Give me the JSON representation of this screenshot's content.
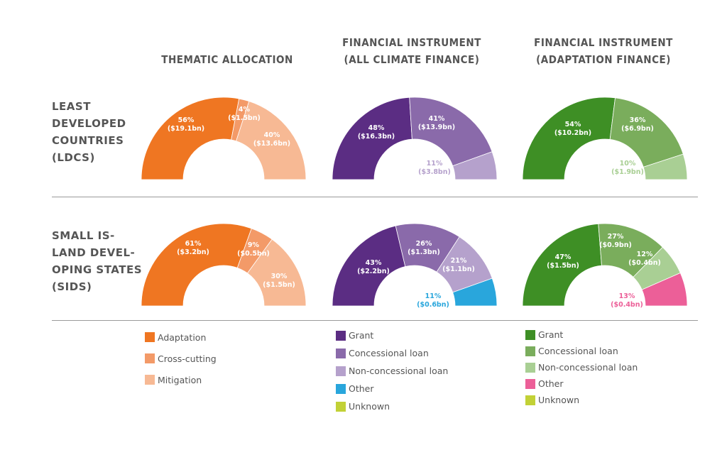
{
  "headers": {
    "col1": [
      "THEMATIC ALLOCATION"
    ],
    "col2": [
      "FINANCIAL INSTRUMENT",
      "(ALL CLIMATE FINANCE)"
    ],
    "col3": [
      "FINANCIAL INSTRUMENT",
      "(ADAPTATION FINANCE)"
    ],
    "row1": [
      "LEAST",
      "DEVELOPED",
      "COUNTRIES",
      "(LDCS)"
    ],
    "row2": [
      "SMALL IS-",
      "LAND DEVEL-",
      "OPING STATES",
      "(SIDS)"
    ]
  },
  "colors": {
    "adaptation": "#ef7622",
    "cross_cutting": "#f39a68",
    "mitigation": "#f7b994",
    "grant_climate": "#5b2d83",
    "concessional_climate": "#8a6aaa",
    "nonconcessional_climate": "#b5a1cc",
    "other_climate": "#29a6dc",
    "unknown_climate": "#c2d136",
    "grant_adapt": "#3e8f25",
    "concessional_adapt": "#7aad5c",
    "nonconcessional_adapt": "#a9cf94",
    "other_adapt": "#ec5f98",
    "unknown_adapt": "#c2d136"
  },
  "legends": {
    "col1": [
      {
        "label": "Adaptation",
        "color": "#ef7622"
      },
      {
        "label": "Cross-cutting",
        "color": "#f39a68"
      },
      {
        "label": "Mitigation",
        "color": "#f7b994"
      }
    ],
    "col2": [
      {
        "label": "Grant",
        "color": "#5b2d83"
      },
      {
        "label": "Concessional loan",
        "color": "#8a6aaa"
      },
      {
        "label": "Non-concessional loan",
        "color": "#b5a1cc"
      },
      {
        "label": "Other",
        "color": "#29a6dc"
      },
      {
        "label": "Unknown",
        "color": "#c2d136"
      }
    ],
    "col3": [
      {
        "label": "Grant",
        "color": "#3e8f25"
      },
      {
        "label": "Concessional loan",
        "color": "#7aad5c"
      },
      {
        "label": "Non-concessional loan",
        "color": "#a9cf94"
      },
      {
        "label": "Other",
        "color": "#ec5f98"
      },
      {
        "label": "Unknown",
        "color": "#c2d136"
      }
    ]
  },
  "chart_data": [
    {
      "type": "pie",
      "row": "LDCS",
      "column": "THEMATIC ALLOCATION",
      "slices": [
        {
          "category": "Adaptation",
          "percent": 56,
          "value_label": "($19.1bn)",
          "color": "#ef7622",
          "label_color": "#ffffff"
        },
        {
          "category": "Cross-cutting",
          "percent": 4,
          "value_label": "($1.5bn)",
          "color": "#f39a68",
          "label_color": "#ffffff"
        },
        {
          "category": "Mitigation",
          "percent": 40,
          "value_label": "($13.6bn)",
          "color": "#f7b994",
          "label_color": "#ffffff"
        }
      ]
    },
    {
      "type": "pie",
      "row": "LDCS",
      "column": "FINANCIAL INSTRUMENT (ALL CLIMATE FINANCE)",
      "slices": [
        {
          "category": "Grant",
          "percent": 48,
          "value_label": "($16.3bn)",
          "color": "#5b2d83",
          "label_color": "#ffffff"
        },
        {
          "category": "Concessional loan",
          "percent": 41,
          "value_label": "($13.9bn)",
          "color": "#8a6aaa",
          "label_color": "#ffffff"
        },
        {
          "category": "Non-concessional loan",
          "percent": 11,
          "value_label": "($3.8bn)",
          "color": "#b5a1cc",
          "label_color": "#b5a1cc"
        }
      ]
    },
    {
      "type": "pie",
      "row": "LDCS",
      "column": "FINANCIAL INSTRUMENT (ADAPTATION FINANCE)",
      "slices": [
        {
          "category": "Grant",
          "percent": 54,
          "value_label": "($10.2bn)",
          "color": "#3e8f25",
          "label_color": "#ffffff"
        },
        {
          "category": "Concessional loan",
          "percent": 36,
          "value_label": "($6.9bn)",
          "color": "#7aad5c",
          "label_color": "#ffffff"
        },
        {
          "category": "Non-concessional loan",
          "percent": 10,
          "value_label": "($1.9bn)",
          "color": "#a9cf94",
          "label_color": "#a9cf94"
        }
      ]
    },
    {
      "type": "pie",
      "row": "SIDS",
      "column": "THEMATIC ALLOCATION",
      "slices": [
        {
          "category": "Adaptation",
          "percent": 61,
          "value_label": "($3.2bn)",
          "color": "#ef7622",
          "label_color": "#ffffff"
        },
        {
          "category": "Cross-cutting",
          "percent": 9,
          "value_label": "($0.5bn)",
          "color": "#f39a68",
          "label_color": "#ffffff"
        },
        {
          "category": "Mitigation",
          "percent": 30,
          "value_label": "($1.5bn)",
          "color": "#f7b994",
          "label_color": "#ffffff"
        }
      ]
    },
    {
      "type": "pie",
      "row": "SIDS",
      "column": "FINANCIAL INSTRUMENT (ALL CLIMATE FINANCE)",
      "slices": [
        {
          "category": "Grant",
          "percent": 43,
          "value_label": "($2.2bn)",
          "color": "#5b2d83",
          "label_color": "#ffffff"
        },
        {
          "category": "Concessional loan",
          "percent": 26,
          "value_label": "($1.3bn)",
          "color": "#8a6aaa",
          "label_color": "#ffffff"
        },
        {
          "category": "Non-concessional loan",
          "percent": 21,
          "value_label": "($1.1bn)",
          "color": "#b5a1cc",
          "label_color": "#ffffff"
        },
        {
          "category": "Other",
          "percent": 11,
          "value_label": "($0.6bn)",
          "color": "#29a6dc",
          "label_color": "#29a6dc"
        }
      ]
    },
    {
      "type": "pie",
      "row": "SIDS",
      "column": "FINANCIAL INSTRUMENT (ADAPTATION FINANCE)",
      "slices": [
        {
          "category": "Grant",
          "percent": 47,
          "value_label": "($1.5bn)",
          "color": "#3e8f25",
          "label_color": "#ffffff"
        },
        {
          "category": "Concessional loan",
          "percent": 27,
          "value_label": "($0.9bn)",
          "color": "#7aad5c",
          "label_color": "#ffffff"
        },
        {
          "category": "Non-concessional loan",
          "percent": 12,
          "value_label": "($0.4bn)",
          "color": "#a9cf94",
          "label_color": "#ffffff"
        },
        {
          "category": "Other",
          "percent": 13,
          "value_label": "($0.4bn)",
          "color": "#ec5f98",
          "label_color": "#ec5f98"
        }
      ]
    }
  ]
}
